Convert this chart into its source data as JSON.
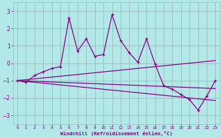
{
  "xlabel": "Windchill (Refroidissement éolien,°C)",
  "x_values": [
    0,
    1,
    2,
    3,
    4,
    5,
    6,
    7,
    8,
    9,
    10,
    11,
    12,
    13,
    14,
    15,
    16,
    17,
    18,
    19,
    20,
    21,
    22,
    23
  ],
  "main_y": [
    -1.0,
    -1.1,
    -0.7,
    -0.5,
    -0.3,
    -0.2,
    2.6,
    0.7,
    1.4,
    0.4,
    0.5,
    2.8,
    1.3,
    0.6,
    0.05,
    1.4,
    -0.05,
    -1.3,
    -1.5,
    -1.8,
    -2.1,
    -2.7,
    -1.9,
    -1.0
  ],
  "trend1": [
    -1.0,
    -0.95,
    -0.9,
    -0.85,
    -0.8,
    -0.75,
    -0.7,
    -0.65,
    -0.6,
    -0.55,
    -0.5,
    -0.45,
    -0.4,
    -0.35,
    -0.3,
    -0.25,
    -0.2,
    -0.15,
    -0.1,
    -0.05,
    0.0,
    0.05,
    0.1,
    0.15
  ],
  "trend2": [
    -1.0,
    -1.02,
    -1.04,
    -1.06,
    -1.08,
    -1.1,
    -1.12,
    -1.14,
    -1.16,
    -1.18,
    -1.2,
    -1.22,
    -1.24,
    -1.26,
    -1.28,
    -1.3,
    -1.32,
    -1.34,
    -1.36,
    -1.38,
    -1.4,
    -1.42,
    -1.44,
    -1.46
  ],
  "trend3": [
    -1.0,
    -1.05,
    -1.1,
    -1.15,
    -1.2,
    -1.25,
    -1.3,
    -1.35,
    -1.4,
    -1.45,
    -1.5,
    -1.55,
    -1.6,
    -1.65,
    -1.7,
    -1.75,
    -1.8,
    -1.85,
    -1.9,
    -1.95,
    -2.0,
    -2.05,
    -2.1,
    -2.15
  ],
  "ylim": [
    -3.5,
    3.5
  ],
  "yticks": [
    -3,
    -2,
    -1,
    0,
    1,
    2,
    3
  ],
  "bg_color": "#b3e8e8",
  "line_color": "#880088",
  "grid_color": "#99bbbb"
}
